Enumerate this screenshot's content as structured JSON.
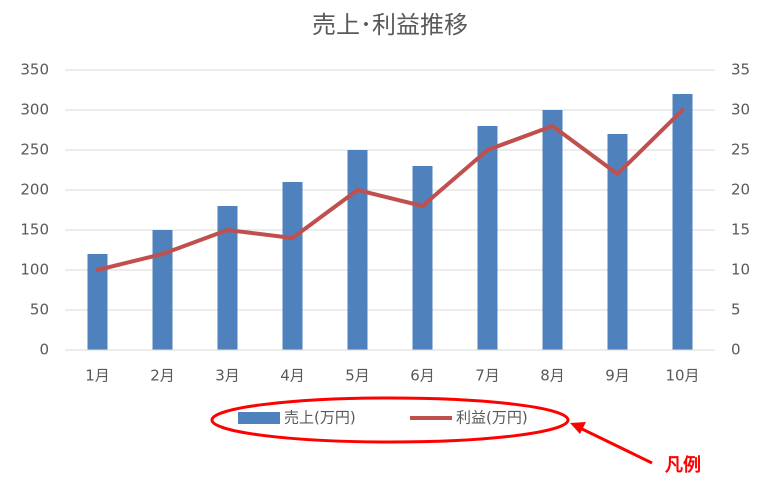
{
  "chart_data": {
    "type": "bar-line",
    "title": "売上･利益推移",
    "categories": [
      "1月",
      "2月",
      "3月",
      "4月",
      "5月",
      "6月",
      "7月",
      "8月",
      "9月",
      "10月"
    ],
    "series": [
      {
        "name": "売上(万円)",
        "type": "bar",
        "color": "#4f81bd",
        "values": [
          120,
          150,
          180,
          210,
          250,
          230,
          280,
          300,
          270,
          320
        ]
      },
      {
        "name": "利益(万円)",
        "type": "line",
        "axis": "y2",
        "color": "#c0504d",
        "values": [
          10,
          12,
          15,
          14,
          20,
          18,
          25,
          28,
          22,
          30
        ]
      }
    ],
    "ylim": [
      0,
      350
    ],
    "yticks": [
      0,
      50,
      100,
      150,
      200,
      250,
      300,
      350
    ],
    "y2lim": [
      0,
      35
    ],
    "y2ticks": [
      0,
      5,
      10,
      15,
      20,
      25,
      30,
      35
    ],
    "grid": true,
    "legend": "bottom",
    "annotation": "凡例"
  }
}
